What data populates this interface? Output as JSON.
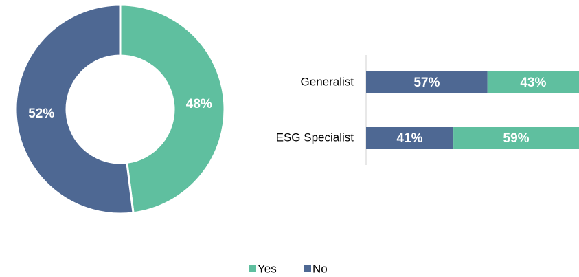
{
  "chart_data": [
    {
      "type": "pie",
      "categories": [
        "Yes",
        "No"
      ],
      "values": [
        48,
        52
      ],
      "value_labels": [
        "48%",
        "52%"
      ],
      "colors": [
        "#5fbf9f",
        "#4e6893"
      ],
      "donut": true
    },
    {
      "type": "bar",
      "orientation": "horizontal",
      "stacked": true,
      "categories": [
        "Generalist",
        "ESG Specialist"
      ],
      "xlim": [
        0,
        100
      ],
      "series": [
        {
          "color": "#4e6893",
          "values": [
            57,
            41
          ],
          "value_labels": [
            "57%",
            "41%"
          ]
        },
        {
          "color": "#5fbf9f",
          "values": [
            43,
            59
          ],
          "value_labels": [
            "43%",
            "59%"
          ]
        }
      ]
    }
  ]
}
